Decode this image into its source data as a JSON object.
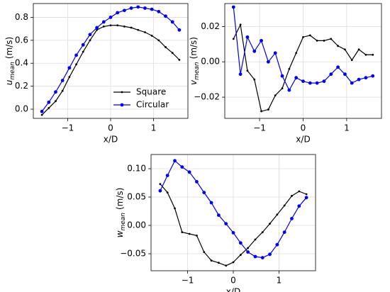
{
  "chart_data": [
    {
      "type": "line",
      "ylabel": [
        "u",
        "mean",
        "(m/s)"
      ],
      "xlabel": "x/D",
      "x": [
        -1.6,
        -1.44,
        -1.28,
        -1.12,
        -0.96,
        -0.8,
        -0.64,
        -0.48,
        -0.32,
        -0.16,
        0,
        0.16,
        0.32,
        0.48,
        0.64,
        0.8,
        0.96,
        1.12,
        1.28,
        1.44,
        1.6
      ],
      "xlim": [
        -1.8,
        1.8
      ],
      "xticks": [
        {
          "value": -1,
          "label": "−1"
        },
        0,
        1
      ],
      "ylim": [
        -0.08,
        0.92
      ],
      "yticks": [
        {
          "value": 0,
          "label": "0.0"
        },
        0.2,
        0.4,
        0.6,
        0.8
      ],
      "grid": true,
      "legend": "lower right",
      "series": [
        {
          "name": "Square",
          "color": "#000000",
          "marker": "point",
          "values": [
            -0.05,
            0.01,
            0.07,
            0.16,
            0.28,
            0.39,
            0.5,
            0.6,
            0.69,
            0.72,
            0.73,
            0.73,
            0.72,
            0.71,
            0.69,
            0.67,
            0.64,
            0.6,
            0.54,
            0.49,
            0.43
          ]
        },
        {
          "name": "Circular",
          "color": "#0000ee",
          "marker": "circle",
          "values": [
            -0.02,
            0.06,
            0.15,
            0.25,
            0.36,
            0.47,
            0.56,
            0.65,
            0.71,
            0.76,
            0.8,
            0.84,
            0.86,
            0.88,
            0.89,
            0.88,
            0.87,
            0.85,
            0.81,
            0.76,
            0.69
          ]
        }
      ]
    },
    {
      "type": "line",
      "ylabel": [
        "v",
        "mean",
        "(m/s)"
      ],
      "xlabel": "x/D",
      "x": [
        -1.6,
        -1.44,
        -1.28,
        -1.12,
        -0.96,
        -0.8,
        -0.64,
        -0.48,
        -0.32,
        -0.16,
        0,
        0.16,
        0.32,
        0.48,
        0.64,
        0.8,
        0.96,
        1.12,
        1.28,
        1.44,
        1.6
      ],
      "xlim": [
        -1.8,
        1.8
      ],
      "xticks": [
        {
          "value": -1,
          "label": "−1"
        },
        0,
        1
      ],
      "ylim": [
        -0.032,
        0.033
      ],
      "yticks": [
        {
          "value": -0.02,
          "label": "−0.02"
        },
        {
          "value": 0,
          "label": "0.00"
        },
        0.02
      ],
      "grid": true,
      "series": [
        {
          "color": "#000000",
          "marker": "point",
          "values": [
            0.013,
            0.021,
            -0.005,
            -0.01,
            -0.028,
            -0.027,
            -0.019,
            -0.015,
            -0.004,
            0.005,
            0.014,
            0.015,
            0.012,
            0.012,
            0.013,
            0.009,
            0.007,
            0.001,
            0.007,
            0.004,
            0.004
          ]
        },
        {
          "color": "#0000ee",
          "marker": "circle",
          "values": [
            0.031,
            -0.007,
            0.014,
            0.006,
            0.012,
            0.0,
            0.005,
            -0.008,
            -0.016,
            -0.009,
            -0.011,
            -0.012,
            -0.012,
            -0.011,
            -0.007,
            -0.003,
            -0.007,
            -0.012,
            -0.01,
            -0.009,
            -0.008
          ]
        }
      ]
    },
    {
      "type": "line",
      "ylabel": [
        "w",
        "mean",
        "(m/s)"
      ],
      "xlabel": "x/D",
      "x": [
        -1.6,
        -1.44,
        -1.28,
        -1.12,
        -0.96,
        -0.8,
        -0.64,
        -0.48,
        -0.32,
        -0.16,
        0,
        0.16,
        0.32,
        0.48,
        0.64,
        0.8,
        0.96,
        1.12,
        1.28,
        1.44,
        1.6
      ],
      "xlim": [
        -1.8,
        1.8
      ],
      "xticks": [
        {
          "value": -1,
          "label": "−1"
        },
        0,
        1
      ],
      "ylim": [
        -0.08,
        0.125
      ],
      "yticks": [
        {
          "value": -0.05,
          "label": "−0.05"
        },
        {
          "value": 0,
          "label": "0.00"
        },
        0.05,
        {
          "value": 0.1,
          "label": "0.10"
        }
      ],
      "grid": true,
      "series": [
        {
          "color": "#000000",
          "marker": "point",
          "values": [
            0.073,
            0.058,
            0.03,
            -0.012,
            -0.015,
            -0.018,
            -0.047,
            -0.062,
            -0.066,
            -0.071,
            -0.065,
            -0.052,
            -0.04,
            -0.025,
            -0.012,
            0.003,
            0.019,
            0.035,
            0.052,
            0.06,
            0.055
          ]
        },
        {
          "color": "#0000ee",
          "marker": "circle",
          "values": [
            0.061,
            0.088,
            0.114,
            0.103,
            0.094,
            0.077,
            0.058,
            0.04,
            0.018,
            0.003,
            -0.013,
            -0.031,
            -0.047,
            -0.055,
            -0.057,
            -0.051,
            -0.034,
            -0.012,
            0.012,
            0.034,
            0.049
          ]
        }
      ]
    }
  ]
}
